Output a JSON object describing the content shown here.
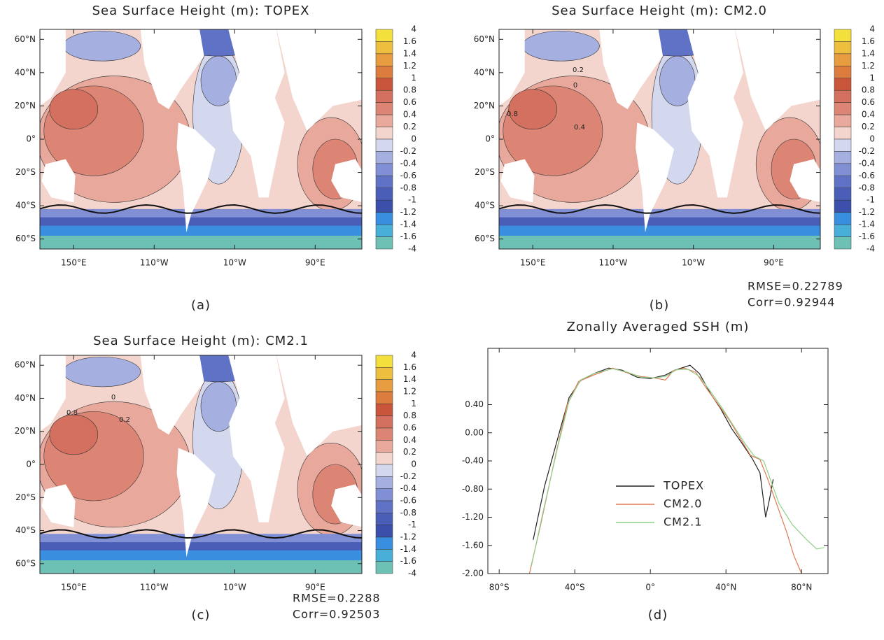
{
  "chart_data": [
    {
      "type": "map",
      "title": "Sea Surface Height (m): TOPEX",
      "panel_label": "(a)",
      "xlim": [
        108,
        508
      ],
      "ylim": [
        -66,
        66
      ],
      "xticks": [
        {
          "value": 150,
          "label": "150°E"
        },
        {
          "value": 250,
          "label": "110°W"
        },
        {
          "value": 350,
          "label": "10°W"
        },
        {
          "value": 450,
          "label": "90°E"
        }
      ],
      "yticks": [
        {
          "value": 60,
          "label": "60°N"
        },
        {
          "value": 40,
          "label": "40°N"
        },
        {
          "value": 20,
          "label": "20°N"
        },
        {
          "value": 0,
          "label": "0°"
        },
        {
          "value": -20,
          "label": "20°S"
        },
        {
          "value": -40,
          "label": "40°S"
        },
        {
          "value": -60,
          "label": "60°S"
        }
      ],
      "colorbar": {
        "levels": [
          4,
          1.6,
          1.4,
          1.2,
          1,
          0.8,
          0.6,
          0.4,
          0.2,
          0,
          -0.2,
          -0.4,
          -0.6,
          -0.8,
          -1,
          -1.2,
          -1.4,
          -1.6,
          -4
        ],
        "colors": [
          "#f3e03c",
          "#eebf3f",
          "#e69c3f",
          "#dc7d3e",
          "#c9553a",
          "#d4705f",
          "#dc8575",
          "#e8a89c",
          "#f3d5cd",
          "#d3d8ee",
          "#a5afe0",
          "#8190d4",
          "#5f72c6",
          "#4a5eb8",
          "#3c50ab",
          "#3a8ee0",
          "#48b0d8",
          "#6cc0b4"
        ]
      }
    },
    {
      "type": "map",
      "title": "Sea Surface Height (m): CM2.0",
      "panel_label": "(b)",
      "xlim": [
        108,
        508
      ],
      "ylim": [
        -66,
        66
      ],
      "xticks": [
        {
          "value": 150,
          "label": "150°E"
        },
        {
          "value": 250,
          "label": "110°W"
        },
        {
          "value": 350,
          "label": "10°W"
        },
        {
          "value": 450,
          "label": "90°E"
        }
      ],
      "yticks": [
        {
          "value": 60,
          "label": "60°N"
        },
        {
          "value": 40,
          "label": "40°N"
        },
        {
          "value": 20,
          "label": "20°N"
        },
        {
          "value": 0,
          "label": "0°"
        },
        {
          "value": -20,
          "label": "20°S"
        },
        {
          "value": -40,
          "label": "40°S"
        },
        {
          "value": -60,
          "label": "60°S"
        }
      ],
      "colorbar": {
        "levels": [
          4,
          1.6,
          1.4,
          1.2,
          1,
          0.8,
          0.6,
          0.4,
          0.2,
          0,
          -0.2,
          -0.4,
          -0.6,
          -0.8,
          -1,
          -1.2,
          -1.4,
          -1.6,
          -4
        ],
        "colors": [
          "#f3e03c",
          "#eebf3f",
          "#e69c3f",
          "#dc7d3e",
          "#c9553a",
          "#d4705f",
          "#dc8575",
          "#e8a89c",
          "#f3d5cd",
          "#d3d8ee",
          "#a5afe0",
          "#8190d4",
          "#5f72c6",
          "#4a5eb8",
          "#3c50ab",
          "#3a8ee0",
          "#48b0d8",
          "#6cc0b4"
        ]
      },
      "annotations": [
        "0.2",
        "0",
        "0.8",
        "0.4"
      ],
      "stats": [
        "RMSE=0.22789",
        "Corr=0.92944"
      ]
    },
    {
      "type": "map",
      "title": "Sea Surface Height (m): CM2.1",
      "panel_label": "(c)",
      "xlim": [
        108,
        508
      ],
      "ylim": [
        -66,
        66
      ],
      "xticks": [
        {
          "value": 150,
          "label": "150°E"
        },
        {
          "value": 250,
          "label": "110°W"
        },
        {
          "value": 350,
          "label": "10°W"
        },
        {
          "value": 450,
          "label": "90°E"
        }
      ],
      "yticks": [
        {
          "value": 60,
          "label": "60°N"
        },
        {
          "value": 40,
          "label": "40°N"
        },
        {
          "value": 20,
          "label": "20°N"
        },
        {
          "value": 0,
          "label": "0°"
        },
        {
          "value": -20,
          "label": "20°S"
        },
        {
          "value": -40,
          "label": "40°S"
        },
        {
          "value": -60,
          "label": "60°S"
        }
      ],
      "colorbar": {
        "levels": [
          4,
          1.6,
          1.4,
          1.2,
          1,
          0.8,
          0.6,
          0.4,
          0.2,
          0,
          -0.2,
          -0.4,
          -0.6,
          -0.8,
          -1,
          -1.2,
          -1.4,
          -1.6,
          -4
        ],
        "colors": [
          "#f3e03c",
          "#eebf3f",
          "#e69c3f",
          "#dc7d3e",
          "#c9553a",
          "#d4705f",
          "#dc8575",
          "#e8a89c",
          "#f3d5cd",
          "#d3d8ee",
          "#a5afe0",
          "#8190d4",
          "#5f72c6",
          "#4a5eb8",
          "#3c50ab",
          "#3a8ee0",
          "#48b0d8",
          "#6cc0b4"
        ]
      },
      "annotations": [
        "0.2",
        "0",
        "0.8"
      ],
      "stats": [
        "RMSE=0.2288",
        "Corr=0.92503"
      ]
    },
    {
      "type": "line",
      "title": "Zonally Averaged SSH (m)",
      "panel_label": "(d)",
      "xlim": [
        -86,
        94
      ],
      "ylim": [
        -2,
        1.2
      ],
      "xticks": [
        {
          "value": -80,
          "label": "80°S"
        },
        {
          "value": -40,
          "label": "40°S"
        },
        {
          "value": 0,
          "label": "0°"
        },
        {
          "value": 40,
          "label": "40°N"
        },
        {
          "value": 80,
          "label": "80°N"
        }
      ],
      "yticks": [
        {
          "value": 0.4,
          "label": "0.40"
        },
        {
          "value": 0,
          "label": "0.00"
        },
        {
          "value": -0.4,
          "label": "-0.40"
        },
        {
          "value": -0.8,
          "label": "-0.80"
        },
        {
          "value": -1.2,
          "label": "-1.20"
        },
        {
          "value": -1.6,
          "label": "-1.60"
        },
        {
          "value": -2,
          "label": "-2.00"
        }
      ],
      "series": [
        {
          "name": "TOPEX",
          "color": "#222222",
          "x": [
            -62,
            -56,
            -48,
            -43,
            -37,
            -30,
            -22,
            -15,
            -7,
            0,
            8,
            13,
            21,
            26,
            32,
            37,
            43,
            48,
            54,
            58,
            61,
            63,
            65
          ],
          "values": [
            -1.52,
            -0.76,
            0.02,
            0.5,
            0.74,
            0.84,
            0.92,
            0.89,
            0.79,
            0.77,
            0.82,
            0.89,
            0.96,
            0.84,
            0.55,
            0.35,
            0.06,
            -0.13,
            -0.37,
            -0.57,
            -1.2,
            -0.95,
            -0.66
          ]
        },
        {
          "name": "CM2.0",
          "color": "#e07a50",
          "x": [
            -64,
            -58,
            -50,
            -44,
            -38,
            -30,
            -20,
            -12,
            -5,
            2,
            8,
            12,
            18,
            24,
            30,
            36,
            42,
            48,
            53,
            58,
            62,
            68,
            72,
            76,
            80
          ],
          "values": [
            -2,
            -1.3,
            -0.3,
            0.4,
            0.73,
            0.82,
            0.92,
            0.85,
            0.8,
            0.78,
            0.75,
            0.88,
            0.92,
            0.86,
            0.62,
            0.4,
            0.17,
            -0.1,
            -0.32,
            -0.38,
            -0.65,
            -1.1,
            -1.4,
            -1.75,
            -2
          ]
        },
        {
          "name": "CM2.1",
          "color": "#8fcf8a",
          "x": [
            -63,
            -57,
            -49,
            -43,
            -37,
            -30,
            -20,
            -12,
            -5,
            2,
            8,
            14,
            20,
            26,
            32,
            38,
            44,
            50,
            55,
            60,
            64,
            68,
            75,
            82,
            88,
            92
          ],
          "values": [
            -1.9,
            -1.15,
            -0.2,
            0.45,
            0.75,
            0.84,
            0.91,
            0.86,
            0.79,
            0.78,
            0.8,
            0.9,
            0.9,
            0.8,
            0.58,
            0.35,
            0.1,
            -0.15,
            -0.33,
            -0.4,
            -0.7,
            -1.0,
            -1.3,
            -1.5,
            -1.65,
            -1.63
          ]
        }
      ]
    }
  ]
}
